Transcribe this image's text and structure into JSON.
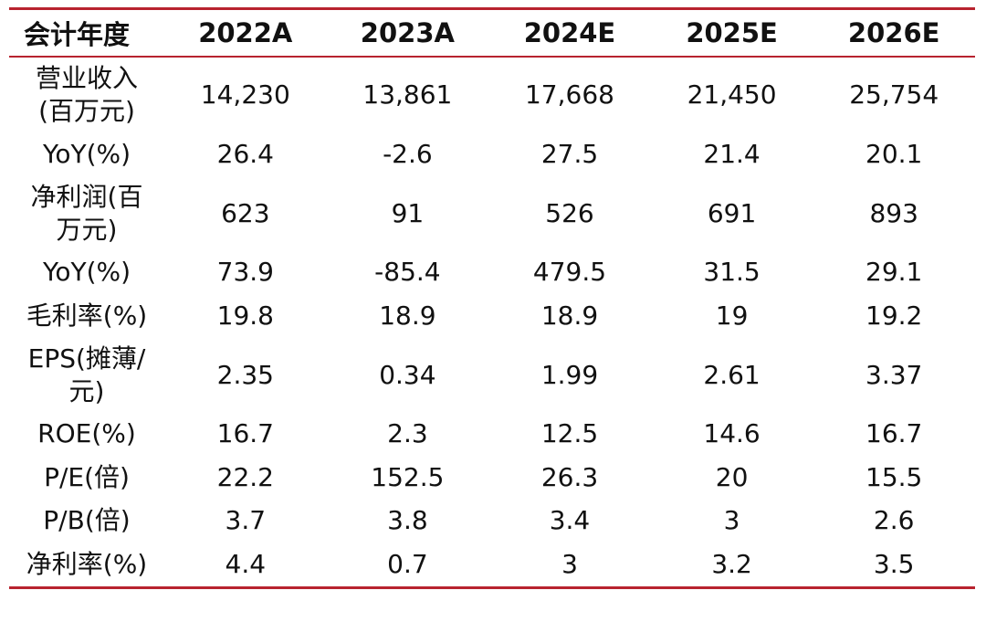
{
  "table": {
    "headers": [
      "会计年度",
      "2022A",
      "2023A",
      "2024E",
      "2025E",
      "2026E"
    ],
    "rows": [
      {
        "label_lines": [
          "营业收入",
          "(百万元)"
        ],
        "values": [
          "14,230",
          "13,861",
          "17,668",
          "21,450",
          "25,754"
        ]
      },
      {
        "label_lines": [
          "YoY(%)"
        ],
        "values": [
          "26.4",
          "-2.6",
          "27.5",
          "21.4",
          "20.1"
        ]
      },
      {
        "label_lines": [
          "净利润(百",
          "万元)"
        ],
        "values": [
          "623",
          "91",
          "526",
          "691",
          "893"
        ]
      },
      {
        "label_lines": [
          "YoY(%)"
        ],
        "values": [
          "73.9",
          "-85.4",
          "479.5",
          "31.5",
          "29.1"
        ]
      },
      {
        "label_lines": [
          "毛利率(%)"
        ],
        "values": [
          "19.8",
          "18.9",
          "18.9",
          "19",
          "19.2"
        ]
      },
      {
        "label_lines": [
          "EPS(摊薄/",
          "元)"
        ],
        "values": [
          "2.35",
          "0.34",
          "1.99",
          "2.61",
          "3.37"
        ]
      },
      {
        "label_lines": [
          "ROE(%)"
        ],
        "values": [
          "16.7",
          "2.3",
          "12.5",
          "14.6",
          "16.7"
        ]
      },
      {
        "label_lines": [
          "P/E(倍)"
        ],
        "values": [
          "22.2",
          "152.5",
          "26.3",
          "20",
          "15.5"
        ]
      },
      {
        "label_lines": [
          "P/B(倍)"
        ],
        "values": [
          "3.7",
          "3.8",
          "3.4",
          "3",
          "2.6"
        ]
      },
      {
        "label_lines": [
          "净利率(%)"
        ],
        "values": [
          "4.4",
          "0.7",
          "3",
          "3.2",
          "3.5"
        ]
      }
    ]
  },
  "colors": {
    "rule": "#b8232f",
    "text": "#111111",
    "background": "#ffffff"
  }
}
